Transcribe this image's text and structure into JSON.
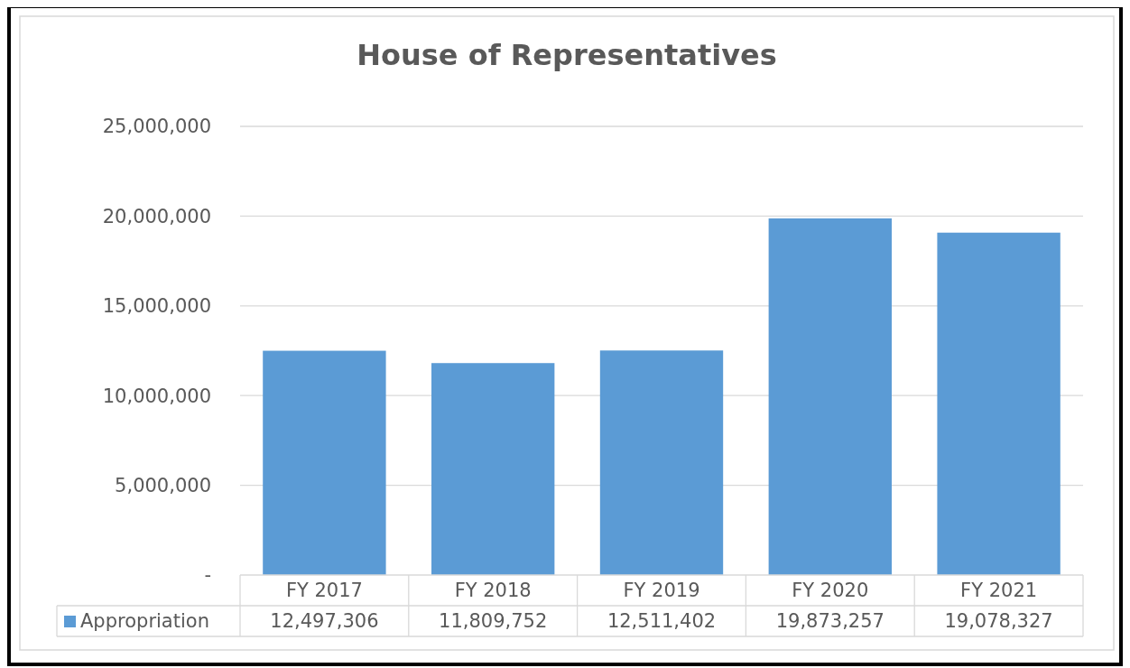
{
  "chart_data": {
    "type": "bar",
    "title": "House of Representatives",
    "categories": [
      "FY 2017",
      "FY 2018",
      "FY 2019",
      "FY 2020",
      "FY 2021"
    ],
    "series": [
      {
        "name": "Appropriation",
        "color": "#5b9bd5",
        "values": [
          12497306,
          11809752,
          12511402,
          19873257,
          19078327
        ],
        "value_labels": [
          "12,497,306",
          "11,809,752",
          "12,511,402",
          "19,873,257",
          "19,078,327"
        ]
      }
    ],
    "ylim": [
      0,
      25000000
    ],
    "yticks": [
      {
        "value": 0,
        "label": "-"
      },
      {
        "value": 5000000,
        "label": "5,000,000"
      },
      {
        "value": 10000000,
        "label": "10,000,000"
      },
      {
        "value": 15000000,
        "label": "15,000,000"
      },
      {
        "value": 20000000,
        "label": "20,000,000"
      },
      {
        "value": 25000000,
        "label": "25,000,000"
      }
    ],
    "grid": "y",
    "legend": "bottom"
  }
}
